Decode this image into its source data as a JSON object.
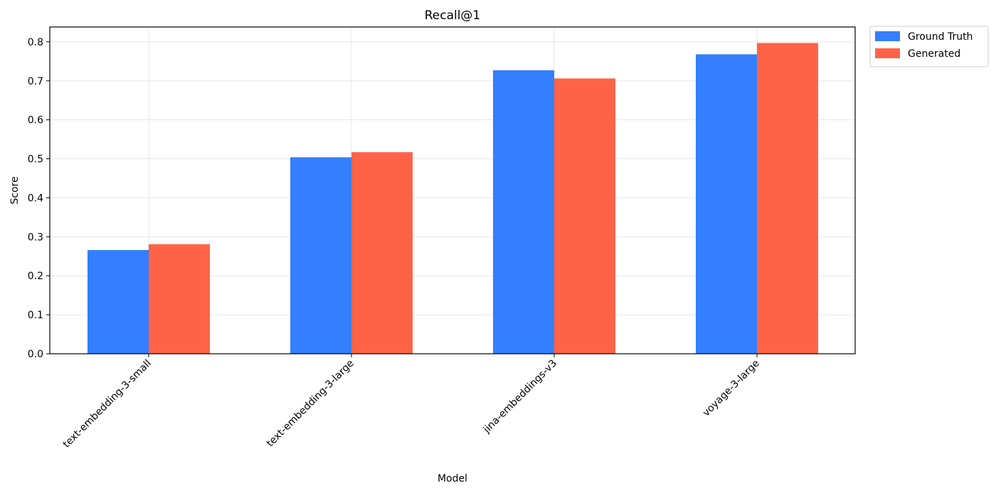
{
  "chart_data": {
    "type": "bar",
    "title": "Recall@1",
    "xlabel": "Model",
    "ylabel": "Score",
    "categories": [
      "text-embedding-3-small",
      "text-embedding-3-large",
      "jina-embeddings-v3",
      "voyage-3-large"
    ],
    "series": [
      {
        "name": "Ground Truth",
        "color": "#337fff",
        "values": [
          0.266,
          0.504,
          0.727,
          0.768
        ]
      },
      {
        "name": "Generated",
        "color": "#ff6347",
        "values": [
          0.281,
          0.517,
          0.706,
          0.797
        ]
      }
    ],
    "ylim": [
      0,
      0.838
    ],
    "yticks": [
      "0.0",
      "0.1",
      "0.2",
      "0.3",
      "0.4",
      "0.5",
      "0.6",
      "0.7",
      "0.8"
    ],
    "grid": true,
    "legend_position": "outside-top-right"
  }
}
